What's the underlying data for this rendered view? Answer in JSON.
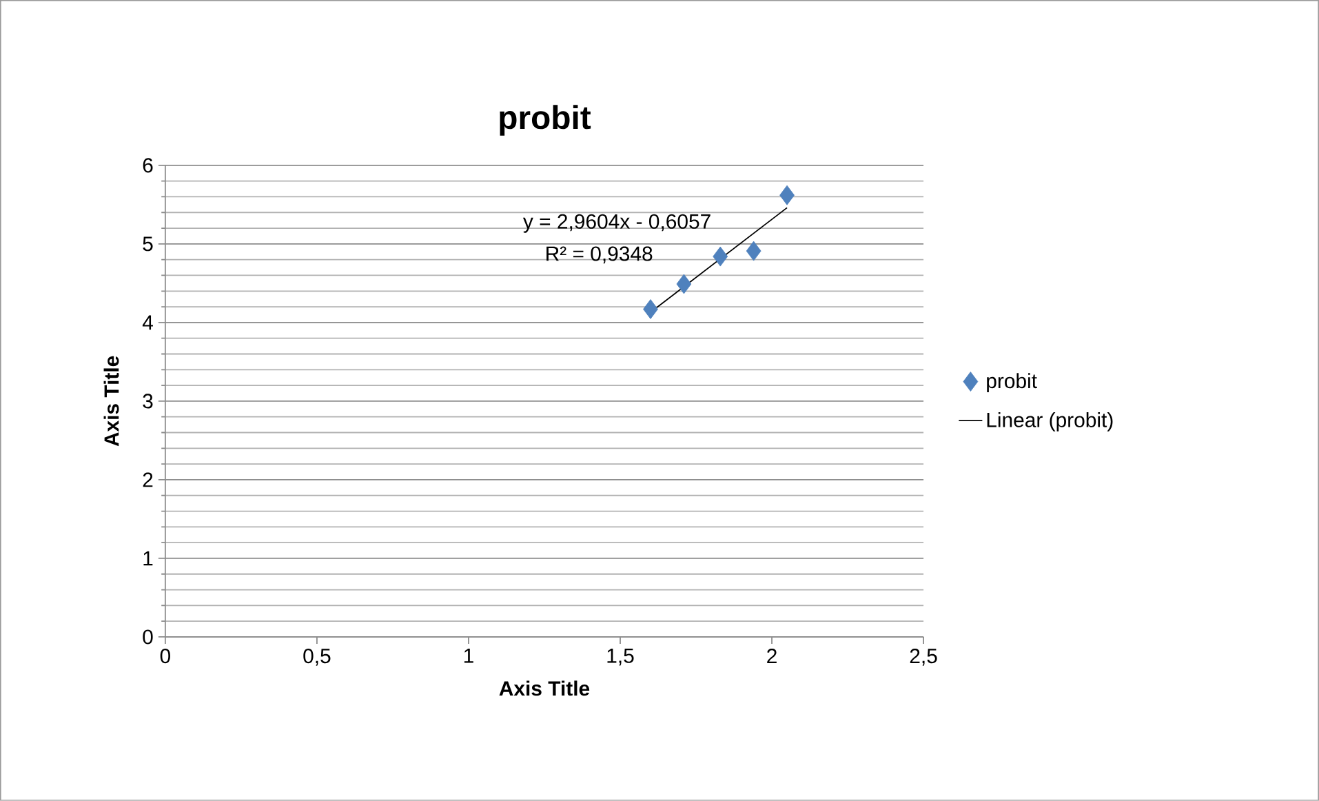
{
  "chart_data": {
    "type": "scatter",
    "title": "probit",
    "xlabel": "Axis Title",
    "ylabel": "Axis Title",
    "series": [
      {
        "name": "probit",
        "color": "#4f81bd",
        "marker": "diamond",
        "x": [
          1.6,
          1.71,
          1.83,
          1.94,
          2.05
        ],
        "values": [
          4.17,
          4.49,
          4.84,
          4.91,
          5.62
        ]
      },
      {
        "name": "Linear (probit)",
        "type": "line",
        "color": "#000000",
        "marker": "none",
        "x": [
          1.6,
          2.05
        ],
        "values": [
          4.13,
          5.46
        ]
      }
    ],
    "annotations": [
      "y = 2,9604x - 0,6057",
      "R² = 0,9348"
    ],
    "xlim": [
      0,
      2.5
    ],
    "ylim": [
      0,
      6
    ],
    "xticks": [
      0,
      {
        "value": 0.5,
        "label": "0,5"
      },
      1,
      {
        "value": 1.5,
        "label": "1,5"
      },
      2,
      {
        "value": 2.5,
        "label": "2,5"
      }
    ],
    "yticks": [
      0,
      1,
      2,
      3,
      4,
      5,
      6
    ],
    "grid": "y",
    "legend": "right"
  }
}
